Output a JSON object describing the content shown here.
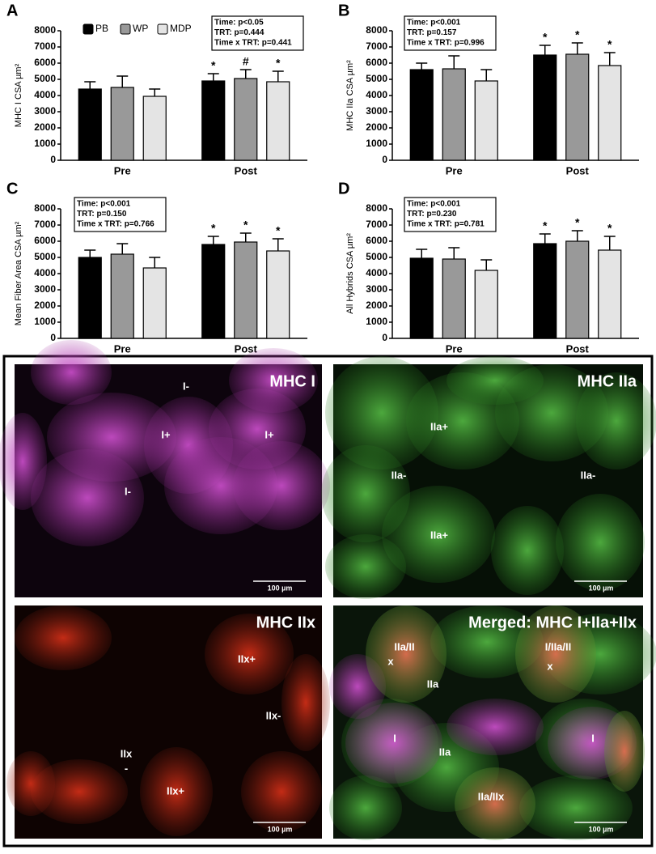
{
  "chart_data": [
    {
      "type": "bar",
      "panel_label": "A",
      "y_label": "MHC I CSA µm²",
      "categories": [
        "Pre",
        "Post"
      ],
      "series": [
        {
          "name": "PB",
          "color": "#000000",
          "values": [
            4400,
            4900
          ],
          "errors": [
            450,
            450
          ],
          "markers": [
            null,
            "*"
          ]
        },
        {
          "name": "WP",
          "color": "#999999",
          "values": [
            4500,
            5050
          ],
          "errors": [
            700,
            550
          ],
          "markers": [
            null,
            "#"
          ]
        },
        {
          "name": "MDP",
          "color": "#e4e4e4",
          "values": [
            3950,
            4850
          ],
          "errors": [
            450,
            650
          ],
          "markers": [
            null,
            "*"
          ]
        }
      ],
      "stats": [
        "Time: p<0.05",
        "TRT: p=0.444",
        "Time x TRT: p=0.441"
      ],
      "ylim": [
        0,
        8000
      ],
      "yticks": [
        0,
        1000,
        2000,
        3000,
        4000,
        5000,
        6000,
        7000,
        8000
      ],
      "legend": true
    },
    {
      "type": "bar",
      "panel_label": "B",
      "y_label": "MHC IIa CSA µm²",
      "categories": [
        "Pre",
        "Post"
      ],
      "series": [
        {
          "color": "#000000",
          "values": [
            5600,
            6500
          ],
          "errors": [
            400,
            600
          ],
          "markers": [
            null,
            "*"
          ]
        },
        {
          "color": "#999999",
          "values": [
            5650,
            6550
          ],
          "errors": [
            800,
            700
          ],
          "markers": [
            null,
            "*"
          ]
        },
        {
          "color": "#e4e4e4",
          "values": [
            4900,
            5850
          ],
          "errors": [
            700,
            800
          ],
          "markers": [
            null,
            "*"
          ]
        }
      ],
      "stats": [
        "Time: p<0.001",
        "TRT: p=0.157",
        "Time x TRT: p=0.996"
      ],
      "ylim": [
        0,
        8000
      ],
      "yticks": [
        0,
        1000,
        2000,
        3000,
        4000,
        5000,
        6000,
        7000,
        8000
      ],
      "legend": false
    },
    {
      "type": "bar",
      "panel_label": "C",
      "y_label": "Mean Fiber Area CSA µm²",
      "categories": [
        "Pre",
        "Post"
      ],
      "series": [
        {
          "color": "#000000",
          "values": [
            5000,
            5800
          ],
          "errors": [
            450,
            500
          ],
          "markers": [
            null,
            "*"
          ]
        },
        {
          "color": "#999999",
          "values": [
            5200,
            5950
          ],
          "errors": [
            650,
            550
          ],
          "markers": [
            null,
            "*"
          ]
        },
        {
          "color": "#e4e4e4",
          "values": [
            4350,
            5400
          ],
          "errors": [
            650,
            750
          ],
          "markers": [
            null,
            "*"
          ]
        }
      ],
      "stats": [
        "Time: p<0.001",
        "TRT: p=0.150",
        "Time x TRT: p=0.766"
      ],
      "ylim": [
        0,
        8000
      ],
      "yticks": [
        0,
        1000,
        2000,
        3000,
        4000,
        5000,
        6000,
        7000,
        8000
      ],
      "legend": false
    },
    {
      "type": "bar",
      "panel_label": "D",
      "y_label": "All Hybrids CSA µm²",
      "categories": [
        "Pre",
        "Post"
      ],
      "series": [
        {
          "color": "#000000",
          "values": [
            4950,
            5850
          ],
          "errors": [
            550,
            600
          ],
          "markers": [
            null,
            "*"
          ]
        },
        {
          "color": "#999999",
          "values": [
            4900,
            6000
          ],
          "errors": [
            700,
            650
          ],
          "markers": [
            null,
            "*"
          ]
        },
        {
          "color": "#e4e4e4",
          "values": [
            4200,
            5450
          ],
          "errors": [
            650,
            850
          ],
          "markers": [
            null,
            "*"
          ]
        }
      ],
      "stats": [
        "Time: p<0.001",
        "TRT: p=0.230",
        "Time x TRT: p=0.781"
      ],
      "ylim": [
        0,
        8000
      ],
      "yticks": [
        0,
        1000,
        2000,
        3000,
        4000,
        5000,
        6000,
        7000,
        8000
      ],
      "legend": false
    }
  ],
  "images": [
    {
      "title": "MHC I",
      "labels": [
        "I-",
        "I+",
        "I+",
        "I-"
      ],
      "scale_bar": "100 µm"
    },
    {
      "title": "MHC IIa",
      "labels": [
        "IIa+",
        "IIa-",
        "IIa-",
        "IIa+"
      ],
      "scale_bar": "100 µm"
    },
    {
      "title": "MHC IIx",
      "labels": [
        "IIx+",
        "IIx-",
        "IIx",
        "-",
        "IIx+"
      ],
      "scale_bar": "100 µm"
    },
    {
      "title": "Merged: MHC I+IIa+IIx",
      "labels": [
        "IIa/II",
        "x",
        "I/IIa/II",
        "x",
        "IIa",
        "I",
        "I",
        "IIa",
        "IIa/IIx"
      ],
      "scale_bar": "100 µm"
    }
  ]
}
